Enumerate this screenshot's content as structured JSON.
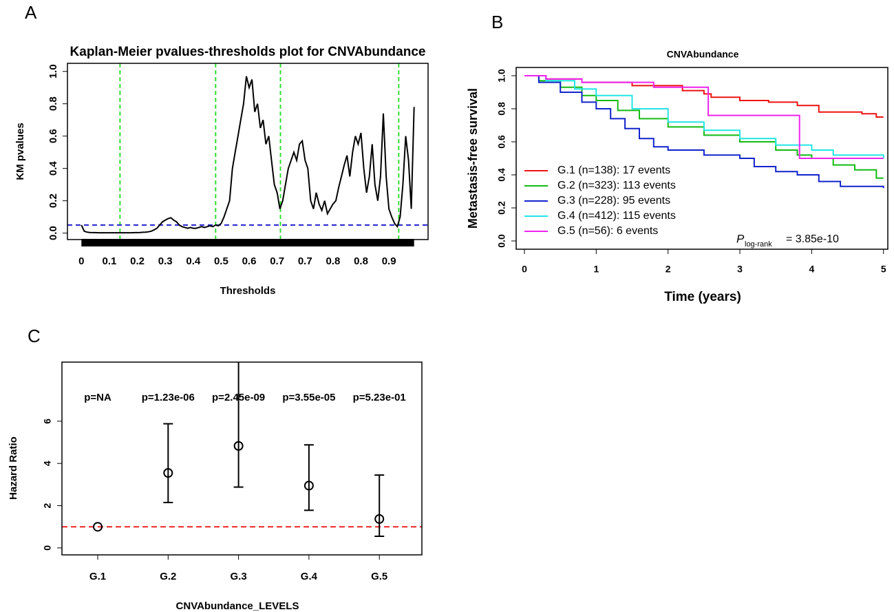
{
  "chart_data": [
    {
      "type": "line",
      "panel": "A",
      "title": "Kaplan-Meier pvalues-thresholds plot for CNVAbundance",
      "x_label": "Thresholds",
      "y_label": "KM pvalues",
      "x": [
        0,
        1,
        2,
        3,
        4,
        5,
        6,
        7,
        8,
        9,
        10,
        11,
        12,
        13,
        14,
        15,
        16,
        17,
        18,
        19,
        20,
        21,
        22,
        23,
        24,
        25,
        26,
        27,
        28,
        29,
        30,
        31,
        32,
        33,
        34,
        35,
        36,
        37,
        38,
        39,
        40,
        41,
        42,
        43,
        44,
        45,
        46,
        47,
        48,
        49,
        50,
        51,
        52,
        53,
        54,
        55,
        56,
        57,
        58,
        59,
        60,
        61,
        62,
        63,
        64,
        65,
        66,
        67,
        68,
        69,
        70,
        71,
        72,
        73,
        74,
        75,
        76,
        77,
        78,
        79,
        80,
        81,
        82,
        83,
        84,
        85,
        86,
        87,
        88,
        89,
        90,
        91,
        92,
        93,
        94,
        95,
        96,
        97,
        98,
        99,
        100,
        101,
        102,
        103,
        104,
        105,
        106,
        107,
        108,
        109,
        110,
        111,
        112,
        113,
        114,
        115,
        116,
        117,
        118,
        119
      ],
      "values": [
        0.05,
        0.012,
        0.006,
        0.004,
        0.003,
        0.003,
        0.002,
        0.002,
        0.002,
        0.002,
        0.002,
        0.002,
        0.002,
        0.002,
        0.002,
        0.002,
        0.002,
        0.002,
        0.002,
        0.003,
        0.003,
        0.004,
        0.005,
        0.006,
        0.008,
        0.012,
        0.02,
        0.03,
        0.05,
        0.07,
        0.08,
        0.09,
        0.095,
        0.08,
        0.07,
        0.05,
        0.04,
        0.035,
        0.03,
        0.035,
        0.03,
        0.03,
        0.035,
        0.04,
        0.035,
        0.04,
        0.045,
        0.04,
        0.05,
        0.045,
        0.06,
        0.1,
        0.15,
        0.2,
        0.4,
        0.5,
        0.6,
        0.7,
        0.8,
        0.97,
        0.9,
        0.95,
        0.75,
        0.8,
        0.65,
        0.7,
        0.55,
        0.6,
        0.45,
        0.3,
        0.25,
        0.15,
        0.2,
        0.3,
        0.4,
        0.45,
        0.5,
        0.45,
        0.55,
        0.57,
        0.45,
        0.4,
        0.2,
        0.15,
        0.25,
        0.18,
        0.14,
        0.2,
        0.12,
        0.15,
        0.18,
        0.2,
        0.28,
        0.35,
        0.42,
        0.48,
        0.35,
        0.5,
        0.6,
        0.55,
        0.62,
        0.4,
        0.25,
        0.35,
        0.55,
        0.3,
        0.2,
        0.35,
        0.74,
        0.35,
        0.15,
        0.1,
        0.06,
        0.04,
        0.1,
        0.3,
        0.6,
        0.45,
        0.15,
        0.78
      ],
      "color": "#000000",
      "xlim": [
        -5,
        124
      ],
      "xticks": [
        0,
        {
          "value": 10,
          "label": "0.1"
        },
        {
          "value": 20,
          "label": "0.2"
        },
        {
          "value": 30,
          "label": "0.3"
        },
        {
          "value": 40,
          "label": "0.4"
        },
        {
          "value": 50,
          "label": "0.5"
        },
        {
          "value": 60,
          "label": "0.6"
        },
        {
          "value": 70,
          "label": "0.7"
        },
        {
          "value": 80,
          "label": "0.7"
        },
        {
          "value": 90,
          "label": "0.8"
        },
        {
          "value": 100,
          "label": "0.8"
        },
        {
          "value": 110,
          "label": "0.9"
        }
      ],
      "ylim": [
        -0.04,
        1.05
      ],
      "yticks": [
        {
          "value": 0,
          "label": "0.0"
        },
        0.2,
        0.4,
        0.6,
        0.8,
        {
          "value": 1,
          "label": "1.0"
        }
      ],
      "hline": {
        "value": 0.05,
        "color": "#2222cc"
      },
      "vlines": {
        "values": [
          13.8,
          48,
          71.2,
          113.5
        ],
        "color": "#33dd33"
      }
    },
    {
      "type": "step",
      "panel": "B",
      "title": "CNVAbundance",
      "x_label": "Time (years)",
      "y_label": "Metastasis-free survival",
      "series": [
        {
          "name": "G.1 (n=138): 17 events",
          "color": "#ee1111",
          "x": [
            0,
            0.3,
            0.8,
            1.5,
            2.2,
            2.5,
            2.6,
            3.0,
            3.4,
            3.8,
            4.1,
            4.7,
            4.9,
            5
          ],
          "values": [
            1,
            0.98,
            0.96,
            0.94,
            0.91,
            0.89,
            0.87,
            0.85,
            0.84,
            0.82,
            0.78,
            0.77,
            0.75,
            0.75
          ]
        },
        {
          "name": "G.2 (n=323): 113 events",
          "color": "#11bb11",
          "x": [
            0,
            0.2,
            0.5,
            0.8,
            1,
            1.3,
            1.6,
            2,
            2.5,
            3,
            3.5,
            3.8,
            4,
            4.3,
            4.6,
            4.9,
            5
          ],
          "values": [
            1,
            0.97,
            0.93,
            0.88,
            0.85,
            0.79,
            0.74,
            0.69,
            0.64,
            0.6,
            0.55,
            0.52,
            0.5,
            0.46,
            0.43,
            0.38,
            0.38
          ]
        },
        {
          "name": "G.3 (n=228): 95 events",
          "color": "#1122cc",
          "x": [
            0,
            0.2,
            0.5,
            0.8,
            1,
            1.2,
            1.4,
            1.6,
            1.8,
            2,
            2.5,
            3,
            3.2,
            3.5,
            3.8,
            4.1,
            4.4,
            5
          ],
          "values": [
            1,
            0.96,
            0.9,
            0.84,
            0.8,
            0.74,
            0.68,
            0.62,
            0.57,
            0.55,
            0.52,
            0.5,
            0.45,
            0.42,
            0.4,
            0.36,
            0.33,
            0.32
          ]
        },
        {
          "name": "G.4 (n=412): 115 events",
          "color": "#22e5e5",
          "x": [
            0,
            0.3,
            0.7,
            1,
            1.5,
            2,
            2.5,
            3,
            3.5,
            4,
            4.3,
            5
          ],
          "values": [
            1,
            0.97,
            0.92,
            0.88,
            0.8,
            0.72,
            0.67,
            0.62,
            0.58,
            0.55,
            0.52,
            0.5
          ]
        },
        {
          "name": "G.5 (n=56): 6 events",
          "color": "#ee22ee",
          "x": [
            0,
            0.3,
            0.8,
            1.8,
            2.56,
            3.83,
            5
          ],
          "values": [
            1,
            0.98,
            0.96,
            0.93,
            0.76,
            0.5,
            0.5
          ]
        }
      ],
      "annotation": {
        "symbol": "P",
        "subscript": "log-rank",
        "text": "= 3.85e-10"
      },
      "xlim": [
        -0.115,
        5.06
      ],
      "xticks": [
        0,
        1,
        2,
        3,
        4,
        5
      ],
      "ylim": [
        -0.05,
        1.05
      ],
      "yticks": [
        {
          "value": 0,
          "label": "0.0"
        },
        0.2,
        0.4,
        0.6,
        0.8,
        {
          "value": 1,
          "label": "1.0"
        }
      ],
      "legend": "bottom-left"
    },
    {
      "type": "errorbar",
      "panel": "C",
      "x_label": "CNVAbundance_LEVELS",
      "y_label": "Hazard Ratio",
      "categories": [
        "G.1",
        "G.2",
        "G.3",
        "G.4",
        "G.5"
      ],
      "values": [
        1.0,
        3.55,
        4.83,
        2.95,
        1.37
      ],
      "lower": [
        null,
        2.15,
        2.88,
        1.78,
        0.55
      ],
      "upper": [
        null,
        5.88,
        9.0,
        4.88,
        3.45
      ],
      "p_labels": [
        "p=NA",
        "p=1.23e-06",
        "p=2.45e-09",
        "p=3.55e-05",
        "p=5.23e-01"
      ],
      "color": "#000000",
      "ylim": [
        -0.33,
        8.8
      ],
      "yticks": [
        0,
        2,
        4,
        6
      ],
      "hline": {
        "value": 1,
        "color": "#ee2222"
      }
    }
  ]
}
